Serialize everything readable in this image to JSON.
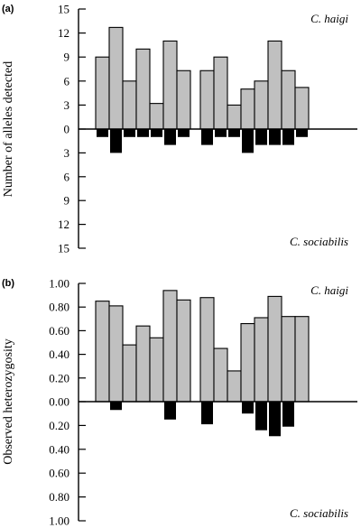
{
  "chart_data": [
    {
      "type": "bar",
      "panel_label": "(a)",
      "ylabel": "Number of alleles detected",
      "top_species": "C. haigi",
      "bottom_species": "C. sociabilis",
      "ylim_top": [
        0,
        15
      ],
      "ylim_bottom": [
        0,
        15
      ],
      "tick_values": [
        15,
        12,
        9,
        6,
        3,
        0,
        3,
        6,
        9,
        12,
        15
      ],
      "tick_labels": [
        "15",
        "12",
        "9",
        "6",
        "3",
        "0",
        "3",
        "6",
        "9",
        "12",
        "15"
      ],
      "groups": [
        {
          "top_values": [
            9,
            12.7,
            6,
            10,
            3.2,
            11,
            7.3
          ],
          "bottom_values": [
            1,
            3,
            1,
            1,
            1,
            2,
            1
          ]
        },
        {
          "top_values": [
            7.3,
            9,
            3,
            5,
            6,
            11,
            7.3,
            5.2
          ],
          "bottom_values": [
            2,
            1,
            1,
            3,
            2,
            2,
            2,
            1
          ]
        }
      ],
      "colors": {
        "top": "#c0c0c0",
        "bottom": "#000000"
      }
    },
    {
      "type": "bar",
      "panel_label": "(b)",
      "ylabel": "Observed heterozygosity",
      "top_species": "C. haigi",
      "bottom_species": "C. sociabilis",
      "ylim_top": [
        0,
        1
      ],
      "ylim_bottom": [
        0,
        1
      ],
      "tick_values": [
        1,
        0.8,
        0.6,
        0.4,
        0.2,
        0,
        0.2,
        0.4,
        0.6,
        0.8,
        1
      ],
      "tick_labels": [
        "1.00",
        "0.80",
        "0.60",
        "0.40",
        "0.20",
        "0.00",
        "0.20",
        "0.40",
        "0.60",
        "0.80",
        "1.00"
      ],
      "groups": [
        {
          "top_values": [
            0.85,
            0.81,
            0.48,
            0.64,
            0.54,
            0.94,
            0.86
          ],
          "bottom_values": [
            0,
            0.07,
            0,
            0,
            0,
            0.15,
            0
          ]
        },
        {
          "top_values": [
            0.88,
            0.45,
            0.26,
            0.66,
            0.71,
            0.89,
            0.72,
            0.72
          ],
          "bottom_values": [
            0.19,
            0,
            0,
            0.1,
            0.24,
            0.29,
            0.21,
            0
          ]
        }
      ],
      "colors": {
        "top": "#c0c0c0",
        "bottom": "#000000"
      }
    }
  ]
}
